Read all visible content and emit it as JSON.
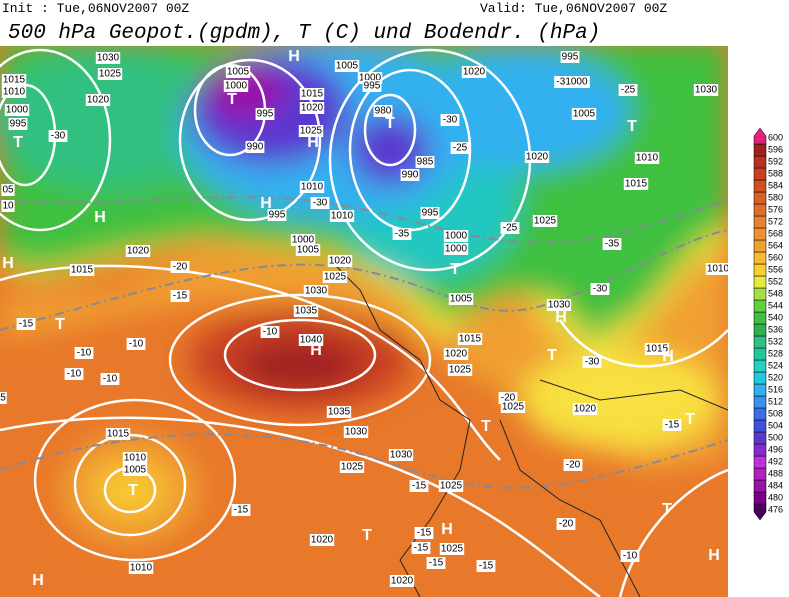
{
  "header": {
    "init": "Init : Tue,06NOV2007 00Z",
    "valid": "Valid: Tue,06NOV2007 00Z",
    "title": "500 hPa Geopot.(gpdm), T (C) und Bodendr. (hPa)"
  },
  "colorbar": {
    "levels": [
      476,
      480,
      484,
      488,
      492,
      496,
      500,
      504,
      508,
      512,
      516,
      520,
      524,
      528,
      532,
      536,
      540,
      544,
      548,
      552,
      556,
      560,
      564,
      568,
      572,
      576,
      580,
      584,
      588,
      592,
      596,
      600
    ],
    "colors": [
      "#4a0058",
      "#7a0088",
      "#9a10a8",
      "#b020c0",
      "#c030d8",
      "#8828d0",
      "#5a38d0",
      "#4050e0",
      "#3c6ce8",
      "#3890f0",
      "#30b0f0",
      "#20c8e0",
      "#20d0c0",
      "#20c8a0",
      "#30c080",
      "#30b050",
      "#40c040",
      "#60d040",
      "#a8e040",
      "#e8e840",
      "#f8d030",
      "#f8b830",
      "#f0a030",
      "#f09030",
      "#e88030",
      "#e07028",
      "#d86020",
      "#d05020",
      "#c84020",
      "#b83020",
      "#a02020",
      "#e02080"
    ]
  },
  "map_labels": [
    "H",
    "1030",
    "1025",
    "1015",
    "1010",
    "1020",
    "1000",
    "995",
    "-30",
    "T",
    "1005",
    "1000",
    "T",
    "995",
    "1015",
    "1020",
    "1025",
    "H",
    "990",
    "1005",
    "1000",
    "995",
    "980",
    "T",
    "-30",
    "-25",
    "985",
    "990",
    "1010",
    "-30",
    "H",
    "995",
    "1020",
    "995",
    "-31000",
    "1005",
    "-25",
    "1030",
    "T",
    "1020",
    "1010",
    "1015",
    "995",
    "-35",
    "-25",
    "1025",
    "-35",
    "H",
    "1010",
    "1000",
    "1005",
    "1000",
    "1000",
    "T",
    "H",
    "1020",
    "1015",
    "-20",
    "1020",
    "1025",
    "1030",
    "-15",
    "-15",
    "T",
    "1035",
    "1005",
    "-30",
    "1030",
    "H",
    "-10",
    "1040",
    "H",
    "1015",
    "1020",
    "1025",
    "T",
    "-30",
    "1015",
    "H",
    "-10",
    "-10",
    "-10",
    "-10",
    "1035",
    "-20",
    "1025",
    "1020",
    "T",
    "-15",
    "1015",
    "1030",
    "T",
    "1010",
    "1005",
    "T",
    "1030",
    "-20",
    "1025",
    "-15",
    "1025",
    "-15",
    "-20",
    "H",
    "T",
    "1020",
    "-15",
    "-15",
    "1025",
    "-15",
    "-15",
    "-10",
    "1010",
    "H",
    "1020",
    "T",
    "H",
    "5",
    "05",
    "10",
    "1010"
  ]
}
